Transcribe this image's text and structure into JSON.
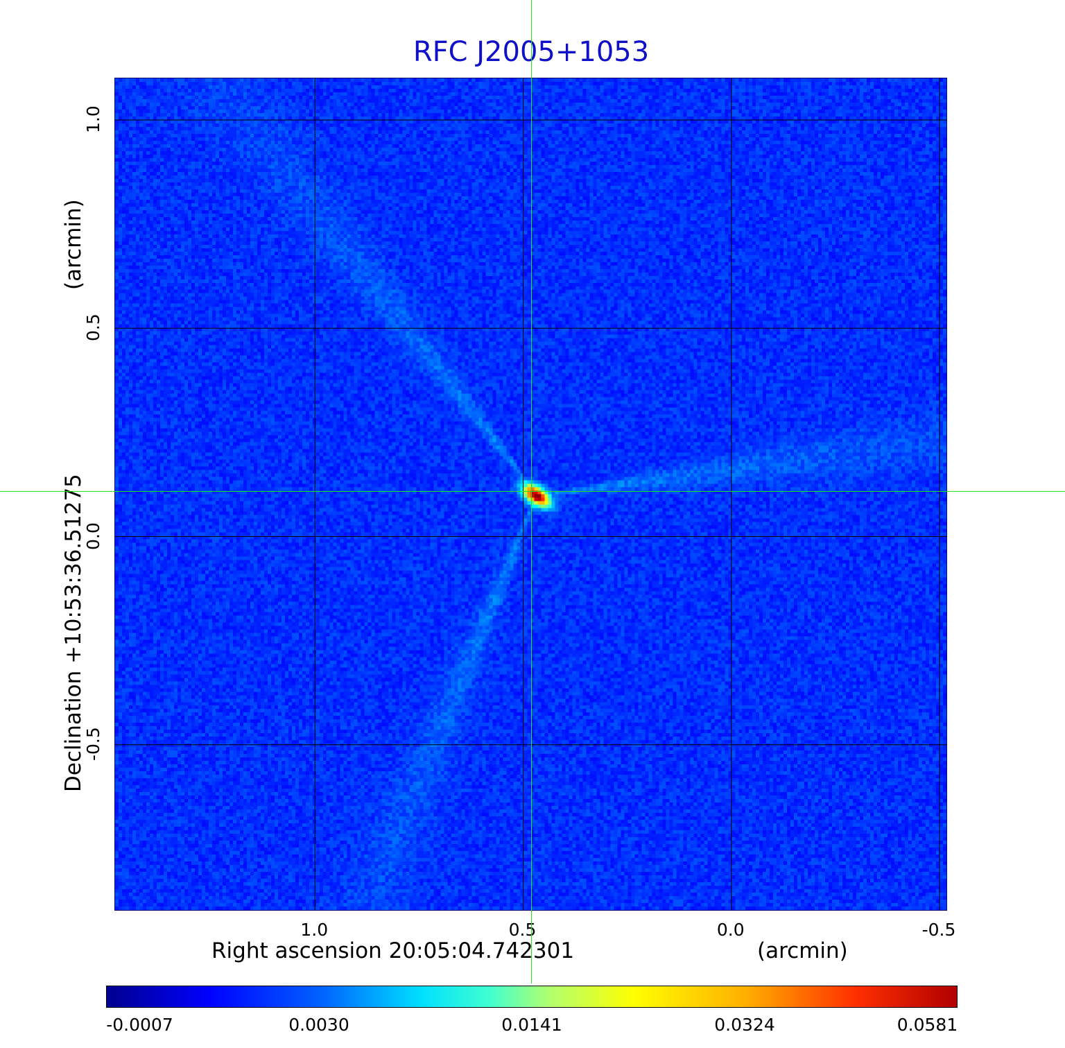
{
  "chart_data": {
    "type": "heatmap",
    "title": "RFC J2005+1053",
    "xlabel": "Right ascension  20:05:04.742301",
    "xunit": "(arcmin)",
    "ylabel": "Declination  +10:53:36.51275",
    "yunit": "(arcmin)",
    "x_ticks": [
      "1.0",
      "0.5",
      "0.0",
      "-0.5"
    ],
    "y_ticks": [
      "1.0",
      "0.5",
      "0.0",
      "-0.5"
    ],
    "x_tick_values": [
      1.0,
      0.5,
      0.0,
      -0.5
    ],
    "y_tick_values": [
      1.0,
      0.5,
      0.0,
      -0.5
    ],
    "xlim": [
      1.48,
      -0.52
    ],
    "ylim": [
      -0.9,
      1.1
    ],
    "grid": true,
    "crosshair": {
      "x": 0.475,
      "y": 0.11
    },
    "colormap": "jet",
    "colorbar_ticks": [
      "-0.0007",
      "0.0030",
      "0.0141",
      "0.0324",
      "0.0581"
    ],
    "colorbar_values": [
      -0.0007,
      0.003,
      0.0141,
      0.0324,
      0.0581
    ],
    "source_peak": {
      "x": 0.47,
      "y": 0.1,
      "value": 0.0581
    },
    "colors": {
      "title": "#1010c8",
      "background": "#1a4cf2",
      "crosshair": "#1ee61e",
      "grid": "#000000"
    }
  }
}
